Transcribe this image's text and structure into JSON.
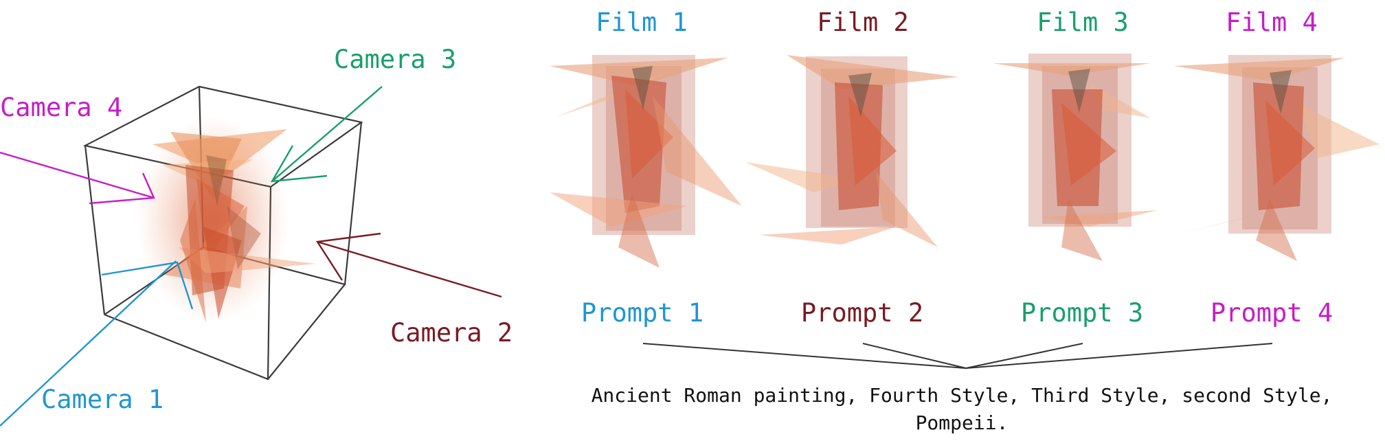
{
  "colors": {
    "blue": "#1f96d2",
    "maroon": "#7a1a22",
    "green": "#17a06a",
    "magenta": "#c61cc8",
    "edge": "#3a3a3a",
    "shard_dark": "#c4502e",
    "shard_light": "#f2a27a"
  },
  "scene": {
    "cameras": [
      {
        "id": "camera1",
        "label": "Camera 1",
        "color": "#1f96d2"
      },
      {
        "id": "camera2",
        "label": "Camera 2",
        "color": "#7a1a22"
      },
      {
        "id": "camera3",
        "label": "Camera 3",
        "color": "#17a06a"
      },
      {
        "id": "camera4",
        "label": "Camera 4",
        "color": "#c61cc8"
      }
    ]
  },
  "films": [
    {
      "label": "Film 1",
      "color": "#1f96d2"
    },
    {
      "label": "Film 2",
      "color": "#7a1a22"
    },
    {
      "label": "Film 3",
      "color": "#17a06a"
    },
    {
      "label": "Film 4",
      "color": "#c61cc8"
    }
  ],
  "prompts": [
    {
      "label": "Prompt 1",
      "color": "#1f96d2"
    },
    {
      "label": "Prompt 2",
      "color": "#7a1a22"
    },
    {
      "label": "Prompt 3",
      "color": "#17a06a"
    },
    {
      "label": "Prompt 4",
      "color": "#c61cc8"
    }
  ],
  "caption": "Ancient Roman painting, Fourth Style, Third Style, second Style, Pompeii."
}
